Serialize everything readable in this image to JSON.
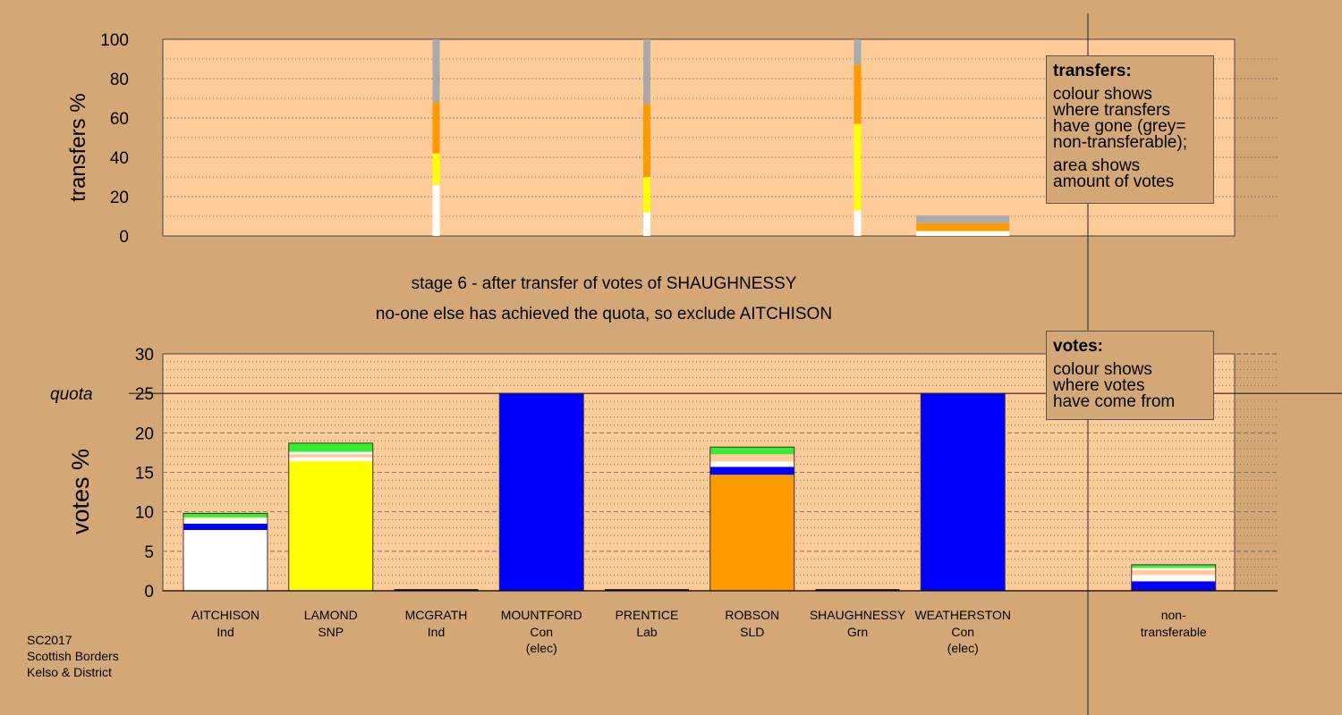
{
  "chart_data": {
    "type": "bar",
    "title": "stage 6 - after transfer of votes of SHAUGHNESSY",
    "subtitle": "no-one else has achieved the quota, so exclude AITCHISON",
    "colors": {
      "background": "#d4a876",
      "plot_bg": "#ffcc99",
      "Ind": "#ffffff",
      "SNP": "#ffff00",
      "Con": "#0000ff",
      "SLD": "#ff9900",
      "Grn": "#33ee33",
      "Lab": "#ff0000",
      "non_transferable": "#aaaaaa"
    },
    "candidates": [
      {
        "name": "AITCHISON",
        "party": "Ind",
        "note": ""
      },
      {
        "name": "LAMOND",
        "party": "SNP",
        "note": ""
      },
      {
        "name": "MCGRATH",
        "party": "Ind",
        "note": ""
      },
      {
        "name": "MOUNTFORD",
        "party": "Con",
        "note": "(elec)"
      },
      {
        "name": "PRENTICE",
        "party": "Lab",
        "note": ""
      },
      {
        "name": "ROBSON",
        "party": "SLD",
        "note": ""
      },
      {
        "name": "SHAUGHNESSY",
        "party": "Grn",
        "note": ""
      },
      {
        "name": "WEATHERSTON",
        "party": "Con",
        "note": "(elec)"
      }
    ],
    "non_transferable": {
      "line1": "non-",
      "line2": "transferable"
    },
    "transfers_chart": {
      "ylabel": "transfers %",
      "ylim": [
        0,
        100
      ],
      "yticks": [
        0,
        20,
        40,
        60,
        80,
        100
      ],
      "thin_bars": [
        {
          "category": "MCGRATH",
          "segments": [
            {
              "color": "#ffffff",
              "from": 0,
              "to": 26
            },
            {
              "color": "#ffff00",
              "from": 26,
              "to": 42
            },
            {
              "color": "#ff9900",
              "from": 42,
              "to": 68
            },
            {
              "color": "#aaaaaa",
              "from": 68,
              "to": 100
            }
          ]
        },
        {
          "category": "PRENTICE",
          "segments": [
            {
              "color": "#ffffff",
              "from": 0,
              "to": 12
            },
            {
              "color": "#ffff00",
              "from": 12,
              "to": 30
            },
            {
              "color": "#ff9900",
              "from": 30,
              "to": 67
            },
            {
              "color": "#aaaaaa",
              "from": 67,
              "to": 100
            }
          ]
        },
        {
          "category": "SHAUGHNESSY",
          "segments": [
            {
              "color": "#ffffff",
              "from": 0,
              "to": 13
            },
            {
              "color": "#ffff00",
              "from": 13,
              "to": 57
            },
            {
              "color": "#ff9900",
              "from": 57,
              "to": 87
            },
            {
              "color": "#aaaaaa",
              "from": 87,
              "to": 100
            }
          ]
        }
      ],
      "wide_bars": [
        {
          "category": "WEATHERSTON",
          "segments": [
            {
              "color": "#ffffff",
              "from": 0,
              "to": 2.5
            },
            {
              "color": "#ff9900",
              "from": 2.5,
              "to": 6.5
            },
            {
              "color": "#aaaaaa",
              "from": 6.5,
              "to": 10.5
            }
          ]
        }
      ]
    },
    "votes_chart": {
      "ylabel": "votes %",
      "ylim": [
        0,
        30
      ],
      "yticks": [
        0,
        5,
        10,
        15,
        20,
        25,
        30
      ],
      "quota": 25,
      "quota_label": "quota",
      "bars": [
        {
          "category": "AITCHISON",
          "segments": [
            {
              "color": "#ffffff",
              "from": 0,
              "to": 7.7
            },
            {
              "color": "#0000ff",
              "from": 7.7,
              "to": 8.5
            },
            {
              "color": "#ffffff",
              "from": 8.5,
              "to": 9.0
            },
            {
              "color": "#ffffcc",
              "from": 9.0,
              "to": 9.3
            },
            {
              "color": "#33ee33",
              "from": 9.3,
              "to": 9.8
            }
          ]
        },
        {
          "category": "LAMOND",
          "segments": [
            {
              "color": "#ffff00",
              "from": 0,
              "to": 16.4
            },
            {
              "color": "#ffffff",
              "from": 16.4,
              "to": 16.9
            },
            {
              "color": "#ffcc99",
              "from": 16.9,
              "to": 17.3
            },
            {
              "color": "#ffffff",
              "from": 17.3,
              "to": 17.6
            },
            {
              "color": "#33ee33",
              "from": 17.6,
              "to": 18.7
            }
          ]
        },
        {
          "category": "MCGRATH",
          "segments": []
        },
        {
          "category": "MOUNTFORD",
          "segments": [
            {
              "color": "#0000ff",
              "from": 0,
              "to": 25
            }
          ]
        },
        {
          "category": "PRENTICE",
          "segments": []
        },
        {
          "category": "ROBSON",
          "segments": [
            {
              "color": "#ff9900",
              "from": 0,
              "to": 14.7
            },
            {
              "color": "#0000ff",
              "from": 14.7,
              "to": 15.7
            },
            {
              "color": "#ffffff",
              "from": 15.7,
              "to": 16.4
            },
            {
              "color": "#ffcc99",
              "from": 16.4,
              "to": 17.3
            },
            {
              "color": "#33ee33",
              "from": 17.3,
              "to": 18.2
            }
          ]
        },
        {
          "category": "SHAUGHNESSY",
          "segments": []
        },
        {
          "category": "WEATHERSTON",
          "segments": [
            {
              "color": "#0000ff",
              "from": 0,
              "to": 25
            }
          ]
        },
        {
          "category": "non-transferable",
          "segments": [
            {
              "color": "#0000ff",
              "from": 0,
              "to": 1.2
            },
            {
              "color": "#ffffff",
              "from": 1.2,
              "to": 2.0
            },
            {
              "color": "#ffcc99",
              "from": 2.0,
              "to": 2.6
            },
            {
              "color": "#ffffff",
              "from": 2.6,
              "to": 2.9
            },
            {
              "color": "#33ee33",
              "from": 2.9,
              "to": 3.3
            }
          ]
        }
      ]
    }
  },
  "legends": {
    "transfers": {
      "title": "transfers:",
      "lines1": [
        "colour shows",
        "where transfers",
        "have gone (grey=",
        "non-transferable);"
      ],
      "lines2": [
        "area shows",
        "amount of votes"
      ]
    },
    "votes": {
      "title": "votes:",
      "lines": [
        "colour shows",
        "where votes",
        "have come from"
      ]
    }
  },
  "footer": {
    "line1": "SC2017",
    "line2": "Scottish Borders",
    "line3": "Kelso & District"
  }
}
